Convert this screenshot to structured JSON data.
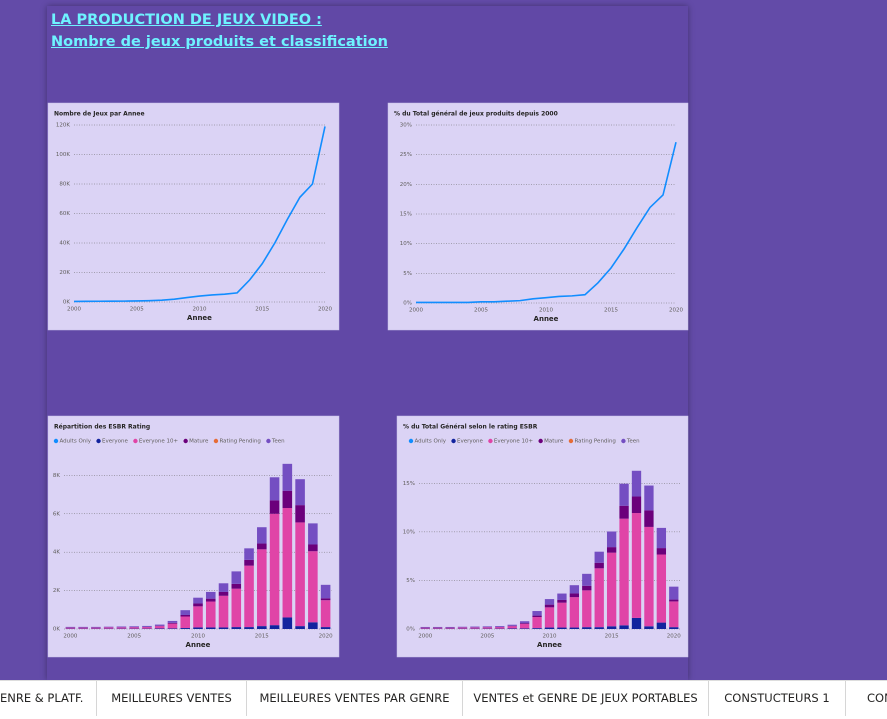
{
  "header": {
    "title_line1": "LA PRODUCTION DE JEUX VIDEO :",
    "title_line2": "Nombre de jeux produits et classification"
  },
  "chart_data": [
    {
      "type": "line",
      "title": "Nombre de Jeux par Annee",
      "x_label": "Annee",
      "color": "#118dff",
      "grid": true,
      "x": [
        2000,
        2001,
        2002,
        2003,
        2004,
        2005,
        2006,
        2007,
        2008,
        2009,
        2010,
        2011,
        2012,
        2013,
        2014,
        2015,
        2016,
        2017,
        2018,
        2019,
        2020
      ],
      "values": [
        400,
        450,
        500,
        550,
        600,
        700,
        900,
        1200,
        1900,
        3000,
        4000,
        4800,
        5300,
        6200,
        15000,
        26000,
        40000,
        56000,
        71000,
        80000,
        119000
      ],
      "xlim": [
        2000,
        2020
      ],
      "xticks": [
        2000,
        2005,
        2010,
        2015,
        2020
      ],
      "ylim": [
        0,
        120000
      ],
      "yticks": [
        {
          "value": 0,
          "label": "0K"
        },
        {
          "value": 20000,
          "label": "20K"
        },
        {
          "value": 40000,
          "label": "40K"
        },
        {
          "value": 60000,
          "label": "60K"
        },
        {
          "value": 80000,
          "label": "80K"
        },
        {
          "value": 100000,
          "label": "100K"
        },
        {
          "value": 120000,
          "label": "120K"
        }
      ]
    },
    {
      "type": "line",
      "title": "% du Total général de jeux produits depuis 2000",
      "x_label": "Annee",
      "color": "#118dff",
      "grid": true,
      "x": [
        2000,
        2001,
        2002,
        2003,
        2004,
        2005,
        2006,
        2007,
        2008,
        2009,
        2010,
        2011,
        2012,
        2013,
        2014,
        2015,
        2016,
        2017,
        2018,
        2019,
        2020
      ],
      "values": [
        0.1,
        0.1,
        0.1,
        0.1,
        0.1,
        0.2,
        0.2,
        0.3,
        0.4,
        0.7,
        0.9,
        1.1,
        1.2,
        1.4,
        3.4,
        5.9,
        9.1,
        12.7,
        16.1,
        18.2,
        27.1
      ],
      "xlim": [
        2000,
        2020
      ],
      "xticks": [
        2000,
        2005,
        2010,
        2015,
        2020
      ],
      "ylim": [
        0,
        30
      ],
      "yticks": [
        {
          "value": 0,
          "label": "0%"
        },
        {
          "value": 5,
          "label": "5%"
        },
        {
          "value": 10,
          "label": "10%"
        },
        {
          "value": 15,
          "label": "15%"
        },
        {
          "value": 20,
          "label": "20%"
        },
        {
          "value": 25,
          "label": "25%"
        },
        {
          "value": 30,
          "label": "30%"
        }
      ]
    },
    {
      "type": "stacked_bar",
      "title": "Répartition des ESBR Rating",
      "x_label": "Annee",
      "grid": true,
      "categories": [
        "2000",
        null,
        null,
        null,
        null,
        "2005",
        null,
        null,
        null,
        null,
        "2010",
        null,
        null,
        null,
        null,
        "2015",
        null,
        null,
        null,
        null,
        "2020"
      ],
      "series": [
        {
          "name": "Adults Only",
          "color": "#118dff",
          "values": [
            0,
            0,
            0,
            0,
            0,
            0,
            0,
            0,
            0,
            0,
            0,
            0,
            0,
            0,
            0,
            0,
            0,
            0,
            0,
            0,
            0
          ]
        },
        {
          "name": "Everyone",
          "color": "#12239e",
          "values": [
            20,
            20,
            20,
            20,
            20,
            20,
            20,
            30,
            30,
            50,
            80,
            80,
            80,
            100,
            100,
            150,
            200,
            600,
            150,
            350,
            100
          ]
        },
        {
          "name": "Everyone 10+",
          "color": "#e044a7",
          "values": [
            50,
            50,
            50,
            60,
            60,
            70,
            80,
            120,
            250,
            600,
            1100,
            1350,
            1650,
            2000,
            3200,
            4000,
            5800,
            5700,
            5400,
            3700,
            1400
          ]
        },
        {
          "name": "Mature",
          "color": "#6b007b",
          "values": [
            10,
            10,
            10,
            10,
            10,
            10,
            10,
            20,
            40,
            80,
            150,
            150,
            200,
            250,
            300,
            300,
            700,
            900,
            900,
            350,
            100
          ]
        },
        {
          "name": "Rating Pending",
          "color": "#e66c37",
          "values": [
            0,
            0,
            0,
            0,
            0,
            0,
            0,
            0,
            0,
            0,
            0,
            0,
            0,
            0,
            0,
            0,
            0,
            0,
            0,
            0,
            0
          ]
        },
        {
          "name": "Teen",
          "color": "#744ec2",
          "values": [
            30,
            30,
            30,
            30,
            40,
            40,
            50,
            60,
            100,
            250,
            300,
            350,
            450,
            650,
            600,
            850,
            1200,
            1400,
            1350,
            1100,
            700
          ]
        }
      ],
      "ylim": [
        0,
        8800
      ],
      "yticks": [
        {
          "value": 0,
          "label": "0K"
        },
        {
          "value": 2000,
          "label": "2K"
        },
        {
          "value": 4000,
          "label": "4K"
        },
        {
          "value": 6000,
          "label": "6K"
        },
        {
          "value": 8000,
          "label": "8K"
        }
      ]
    },
    {
      "type": "stacked_bar",
      "title": "% du Total Général selon le rating ESBR",
      "x_label": "Annee",
      "grid": true,
      "categories": [
        "2000",
        null,
        null,
        null,
        null,
        "2005",
        null,
        null,
        null,
        null,
        "2010",
        null,
        null,
        null,
        null,
        "2015",
        null,
        null,
        null,
        null,
        "2020"
      ],
      "series": [
        {
          "name": "Adults Only",
          "color": "#118dff",
          "values": [
            0,
            0,
            0,
            0,
            0,
            0,
            0,
            0,
            0,
            0,
            0,
            0,
            0,
            0,
            0,
            0,
            0,
            0,
            0,
            0,
            0
          ]
        },
        {
          "name": "Everyone",
          "color": "#12239e",
          "values": [
            0.04,
            0.04,
            0.04,
            0.04,
            0.04,
            0.04,
            0.04,
            0.06,
            0.06,
            0.09,
            0.15,
            0.15,
            0.15,
            0.19,
            0.19,
            0.28,
            0.38,
            1.14,
            0.28,
            0.66,
            0.19
          ]
        },
        {
          "name": "Everyone 10+",
          "color": "#e044a7",
          "values": [
            0.09,
            0.09,
            0.09,
            0.11,
            0.11,
            0.13,
            0.15,
            0.23,
            0.47,
            1.14,
            2.08,
            2.56,
            3.13,
            3.79,
            6.06,
            7.58,
            10.98,
            10.8,
            10.23,
            7.01,
            2.65
          ]
        },
        {
          "name": "Mature",
          "color": "#6b007b",
          "values": [
            0.02,
            0.02,
            0.02,
            0.02,
            0.02,
            0.02,
            0.02,
            0.04,
            0.08,
            0.15,
            0.28,
            0.28,
            0.38,
            0.47,
            0.57,
            0.57,
            1.33,
            1.7,
            1.7,
            0.66,
            0.19
          ]
        },
        {
          "name": "Rating Pending",
          "color": "#e66c37",
          "values": [
            0,
            0,
            0,
            0,
            0,
            0,
            0,
            0,
            0,
            0,
            0,
            0,
            0,
            0,
            0,
            0,
            0,
            0,
            0,
            0,
            0
          ]
        },
        {
          "name": "Teen",
          "color": "#744ec2",
          "values": [
            0.06,
            0.06,
            0.06,
            0.06,
            0.08,
            0.08,
            0.09,
            0.11,
            0.19,
            0.47,
            0.57,
            0.66,
            0.85,
            1.23,
            1.14,
            1.61,
            2.27,
            2.65,
            2.56,
            2.08,
            1.33
          ]
        }
      ],
      "ylim": [
        0,
        17.4
      ],
      "yticks": [
        {
          "value": 0,
          "label": "0%"
        },
        {
          "value": 5,
          "label": "5%"
        },
        {
          "value": 10,
          "label": "10%"
        },
        {
          "value": 15,
          "label": "15%"
        }
      ]
    }
  ],
  "tabs": [
    "ENRE & PLATF.",
    "MEILLEURES VENTES",
    "MEILLEURES VENTES PAR GENRE",
    "VENTES et GENRE DE JEUX PORTABLES",
    "CONSTUCTEURS 1",
    "CON"
  ]
}
